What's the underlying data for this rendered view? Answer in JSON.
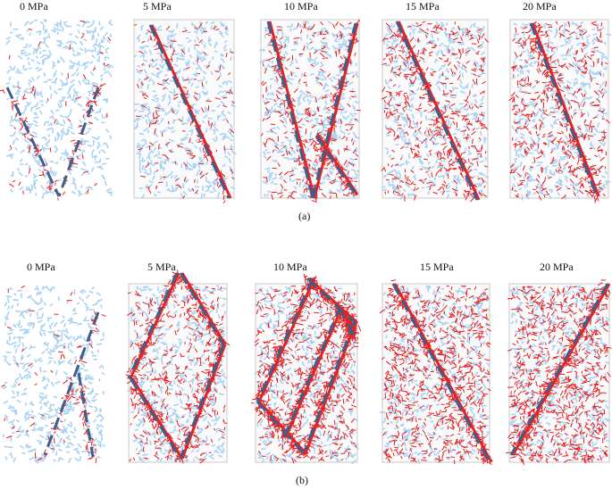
{
  "rows": [
    {
      "caption": "(a)",
      "panels": [
        {
          "label": "0 MPa",
          "crack_level": 0.05
        },
        {
          "label": "5 MPa",
          "crack_level": 0.15
        },
        {
          "label": "10 MPa",
          "crack_level": 0.3
        },
        {
          "label": "15 MPa",
          "crack_level": 0.5
        },
        {
          "label": "20 MPa",
          "crack_level": 0.5
        }
      ]
    },
    {
      "caption": "(b)",
      "panels": [
        {
          "label": "0 MPa",
          "crack_level": 0.04
        },
        {
          "label": "5 MPa",
          "crack_level": 0.4
        },
        {
          "label": "10 MPa",
          "crack_level": 0.65
        },
        {
          "label": "15 MPa",
          "crack_level": 0.85
        },
        {
          "label": "20 MPa",
          "crack_level": 0.9
        }
      ]
    }
  ],
  "colors": {
    "particles": "#a9d1f2",
    "cracks": "#e81c1c",
    "shear_band_red": "#e52222",
    "shear_band_blue": "#3e5f8e",
    "frame": "#c8c8c8"
  }
}
